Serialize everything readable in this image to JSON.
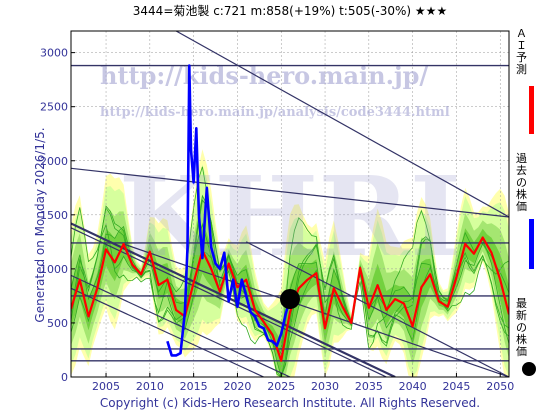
{
  "header": {
    "title": "3444=菊池製 c:721 m:858(+19%) t:505(-30%) ★★★"
  },
  "side_label": "Generated on Monday 2026/1/5.",
  "footer": "Copyright (c) Kids-Hero Research Institute. All Rights Reserved.",
  "watermark": {
    "url1": "http://kids-hero.main.jp/",
    "url2": "http://kids-hero.main.jp/analysis/code3444.html",
    "logo": "KHRI"
  },
  "legend": [
    {
      "label": "ＡＩ予測",
      "color": "#ff0000",
      "kind": "bar"
    },
    {
      "label": "過去の株価",
      "color": "#0000ff",
      "kind": "bar"
    },
    {
      "label": "最新の株価",
      "color": "#000000",
      "kind": "dot"
    }
  ],
  "colors": {
    "forecast": "#ff0000",
    "past_price": "#0000ff",
    "band_light": "#ccff99",
    "band_mid": "#99e066",
    "band_dark": "#66cc33",
    "band_yellow": "#ffff99",
    "line_green": "#33aa22",
    "trend_line": "#333366",
    "hline": "#333366",
    "axis_text": "#333399"
  },
  "chart_data": {
    "type": "line",
    "title": "3444=菊池製 c:721 m:858(+19%) t:505(-30%) ★★★",
    "xlim": [
      2001,
      2051
    ],
    "ylim": [
      0,
      3200
    ],
    "x_ticks": [
      2005,
      2010,
      2015,
      2020,
      2025,
      2030,
      2035,
      2040,
      2045,
      2050
    ],
    "y_ticks": [
      0,
      500,
      1000,
      1500,
      2000,
      2500,
      3000
    ],
    "grid": true,
    "horizontal_lines": [
      2880,
      1240,
      750,
      260,
      150
    ],
    "latest_price": {
      "x": 2026.0,
      "y": 721
    },
    "trend_lines": [
      [
        [
          2001,
          1930
        ],
        [
          2051,
          1480
        ]
      ],
      [
        [
          2013,
          3200
        ],
        [
          2051,
          1480
        ]
      ],
      [
        [
          2001,
          1420
        ],
        [
          2038,
          0
        ]
      ],
      [
        [
          2001,
          1380
        ],
        [
          2037,
          0
        ]
      ],
      [
        [
          2001,
          940
        ],
        [
          2026,
          0
        ]
      ],
      [
        [
          2001,
          820
        ],
        [
          2023,
          0
        ]
      ],
      [
        [
          2007,
          1230
        ],
        [
          2051,
          0
        ]
      ],
      [
        [
          2021,
          1250
        ],
        [
          2051,
          0
        ]
      ]
    ],
    "series": [
      {
        "name": "ＡＩ予測",
        "color": "#ff0000",
        "x": [
          2001,
          2002,
          2003,
          2004,
          2005,
          2006,
          2007,
          2008,
          2009,
          2010,
          2011,
          2012,
          2013,
          2014,
          2015,
          2016,
          2017,
          2018,
          2019,
          2020,
          2021,
          2022,
          2023,
          2024,
          2025,
          2026,
          2027,
          2028,
          2029,
          2030,
          2031,
          2032,
          2033,
          2034,
          2035,
          2036,
          2037,
          2038,
          2039,
          2040,
          2041,
          2042,
          2043,
          2044,
          2045,
          2046,
          2047,
          2048,
          2049,
          2050,
          2051
        ],
        "y": [
          630,
          900,
          560,
          820,
          1180,
          1060,
          1230,
          1040,
          950,
          1160,
          850,
          900,
          620,
          560,
          870,
          1170,
          1000,
          790,
          1050,
          830,
          900,
          620,
          510,
          390,
          150,
          600,
          820,
          900,
          960,
          450,
          820,
          650,
          500,
          1010,
          640,
          850,
          620,
          720,
          680,
          470,
          830,
          950,
          700,
          650,
          920,
          1230,
          1140,
          1290,
          1150,
          900,
          580
        ]
      },
      {
        "name": "過去の株価",
        "color": "#0000ff",
        "x": [
          2012.0,
          2012.5,
          2013.0,
          2013.5,
          2014.0,
          2014.3,
          2014.5,
          2014.7,
          2015.0,
          2015.3,
          2015.6,
          2016.0,
          2016.5,
          2017.0,
          2017.5,
          2018.0,
          2018.5,
          2019.0,
          2019.5,
          2020.0,
          2020.5,
          2021.0,
          2021.5,
          2022.0,
          2022.5,
          2023.0,
          2023.5,
          2024.0,
          2024.5,
          2025.0,
          2025.5,
          2026.0
        ],
        "y": [
          330,
          200,
          200,
          220,
          600,
          1200,
          2880,
          2100,
          1800,
          2300,
          1500,
          1100,
          1750,
          1200,
          1050,
          1000,
          1150,
          700,
          900,
          650,
          900,
          750,
          600,
          560,
          470,
          450,
          340,
          330,
          290,
          400,
          580,
          721
        ]
      }
    ]
  }
}
